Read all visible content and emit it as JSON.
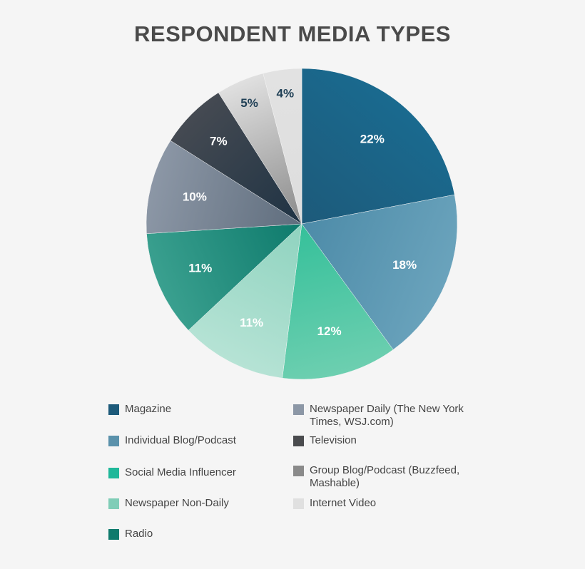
{
  "chart_data": {
    "type": "pie",
    "title": "RESPONDENT MEDIA TYPES",
    "slices": [
      {
        "label": "Magazine",
        "value": 22,
        "display": "22%",
        "color": "#1d5a7a",
        "color_light": "#1a6a8f",
        "text_color": "#ffffff"
      },
      {
        "label": "Individual Blog/Podcast",
        "value": 18,
        "display": "18%",
        "color": "#4d8ba8",
        "color_light": "#6aa3bc",
        "text_color": "#ffffff"
      },
      {
        "label": "Social Media Influencer",
        "value": 12,
        "display": "12%",
        "color": "#35c09a",
        "color_light": "#6dcfb0",
        "text_color": "#ffffff"
      },
      {
        "label": "Newspaper Non-Daily",
        "value": 11,
        "display": "11%",
        "color": "#8fd3bf",
        "color_light": "#b6e3d5",
        "text_color": "#ffffff"
      },
      {
        "label": "Radio",
        "value": 11,
        "display": "11%",
        "color": "#0e7a6c",
        "color_light": "#3aa08f",
        "text_color": "#ffffff"
      },
      {
        "label": "Newspaper Daily (The New York Times, WSJ.com)",
        "value": 10,
        "display": "10%",
        "color": "#5f6d7d",
        "color_light": "#8c97a6",
        "text_color": "#ffffff"
      },
      {
        "label": "Television",
        "value": 7,
        "display": "7%",
        "color": "#1f3344",
        "color_light": "#454a52",
        "text_color": "#ffffff"
      },
      {
        "label": "Group Blog/Podcast (Buzzfeed, Mashable)",
        "value": 5,
        "display": "5%",
        "color": "#8a8a8a",
        "color_light": "#e0e0e0",
        "text_color": "#1f3f55"
      },
      {
        "label": "Internet Video",
        "value": 4,
        "display": "4%",
        "color": "#dddddd",
        "color_light": "#e2e2e2",
        "text_color": "#1f3f55"
      }
    ],
    "legend_swatches": [
      "#1d5a7a",
      "#5a91ab",
      "#1fb89a",
      "#7fcdb7",
      "#0e7a6c",
      "#8c97a6",
      "#4a4b4e",
      "#8a8a8a",
      "#e0e0e0"
    ],
    "start_angle_deg": 0,
    "direction": "clockwise",
    "legend_placement": "bottom"
  }
}
